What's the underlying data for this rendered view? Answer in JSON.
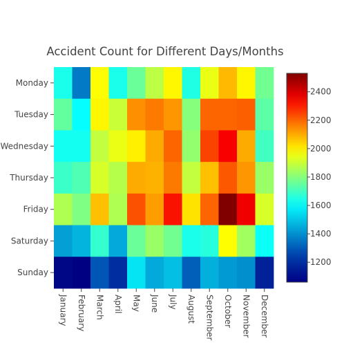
{
  "chart_data": {
    "type": "heatmap",
    "title": "Accident Count for Different Days/Months",
    "x_categories": [
      "January",
      "February",
      "March",
      "April",
      "May",
      "June",
      "July",
      "August",
      "September",
      "October",
      "November",
      "December"
    ],
    "y_categories": [
      "Monday",
      "Tuesday",
      "Wednesday",
      "Thursday",
      "Friday",
      "Saturday",
      "Sunday"
    ],
    "values": [
      [
        1640,
        1360,
        1980,
        1640,
        1760,
        1880,
        1990,
        1650,
        1950,
        2080,
        1990,
        1770
      ],
      [
        1750,
        1610,
        1990,
        1900,
        2140,
        2170,
        2130,
        1800,
        2200,
        2200,
        2210,
        1740
      ],
      [
        1630,
        1630,
        1890,
        1950,
        2000,
        2100,
        2200,
        1820,
        2250,
        2350,
        2100,
        1700
      ],
      [
        1690,
        1720,
        1920,
        1870,
        2100,
        2090,
        2170,
        1890,
        2070,
        2220,
        2130,
        1830
      ],
      [
        1860,
        1790,
        2070,
        1860,
        2230,
        2120,
        2320,
        2020,
        2200,
        2530,
        2360,
        1920
      ],
      [
        1430,
        1470,
        1680,
        1450,
        1760,
        1830,
        1770,
        1640,
        1660,
        1980,
        1840,
        1620
      ],
      [
        1080,
        1060,
        1290,
        1200,
        1560,
        1450,
        1490,
        1310,
        1460,
        1420,
        1400,
        1160
      ]
    ],
    "colorscale": "Jet",
    "zlim": [
      1060,
      2530
    ],
    "colorbar_ticks": [
      1200,
      1400,
      1600,
      1800,
      2000,
      2200,
      2400
    ]
  }
}
